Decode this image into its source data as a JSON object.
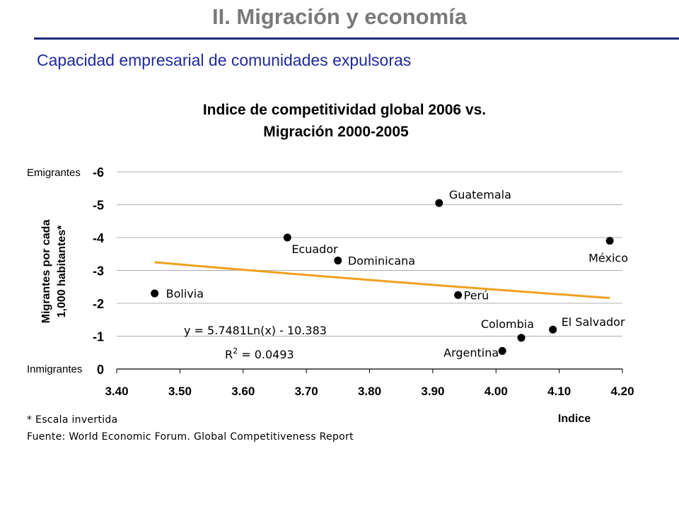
{
  "header": {
    "title": "II. Migración y economía",
    "subtitle": "Capacidad empresarial de comunidades expulsoras"
  },
  "chart_data": {
    "type": "scatter",
    "title_line1": "Indice de competitividad global 2006 vs.",
    "title_line2": "Migración 2000-2005",
    "xlabel": "Indice",
    "ylabel_line1": "Migrantes por cada",
    "ylabel_line2": "1,000 habitantes*",
    "xlim": [
      3.4,
      4.2
    ],
    "ylim": [
      0,
      -6
    ],
    "y_inverted": true,
    "x_ticks": [
      "3.40",
      "3.50",
      "3.60",
      "3.70",
      "3.80",
      "3.90",
      "4.00",
      "4.10",
      "4.20"
    ],
    "y_ticks": [
      "0",
      "-1",
      "-2",
      "-3",
      "-4",
      "-5",
      "-6"
    ],
    "y_tick_top_label": "Emigrantes",
    "y_tick_bottom_label": "Inmigrantes",
    "grid": "horizontal",
    "points": [
      {
        "label": "Bolivia",
        "x": 3.46,
        "y": -2.3
      },
      {
        "label": "Ecuador",
        "x": 3.67,
        "y": -4.0
      },
      {
        "label": "Dominicana",
        "x": 3.75,
        "y": -3.3
      },
      {
        "label": "Guatemala",
        "x": 3.91,
        "y": -5.05
      },
      {
        "label": "Perú",
        "x": 3.94,
        "y": -2.25
      },
      {
        "label": "Argentina",
        "x": 4.01,
        "y": -0.55
      },
      {
        "label": "Colombia",
        "x": 4.04,
        "y": -0.95
      },
      {
        "label": "El Salvador",
        "x": 4.09,
        "y": -1.2
      },
      {
        "label": "México",
        "x": 4.18,
        "y": -3.9
      }
    ],
    "trendline": {
      "type": "logarithmic",
      "a": 5.7481,
      "b": -10.383,
      "x_range": [
        3.46,
        4.18
      ],
      "color": "#f0a020",
      "equation_text": "y = 5.7481Ln(x) - 10.383",
      "r2_prefix": "R",
      "r2_exp": "2",
      "r2_value": " = 0.0493"
    }
  },
  "footnotes": {
    "scale_note": "* Escala invertida",
    "source": "Fuente: World Economic Forum. Global Competitiveness Report"
  }
}
